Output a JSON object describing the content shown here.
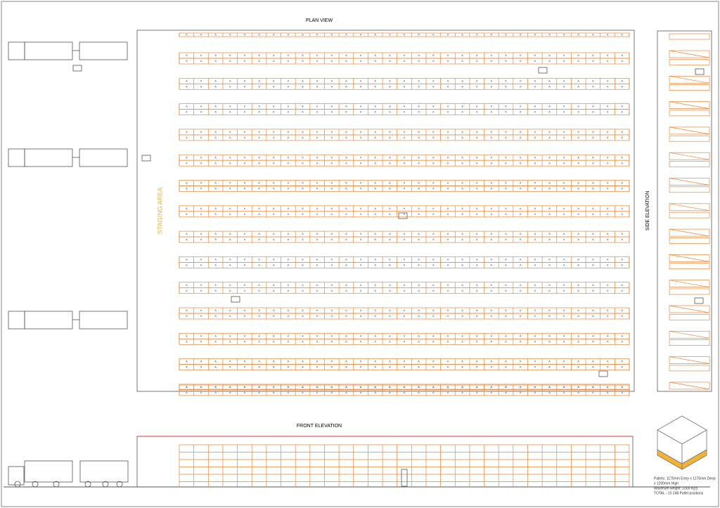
{
  "plan": {
    "title": "PLAN VIEW",
    "staging_label": "STAGING AREA",
    "rack_label": "A"
  },
  "side": {
    "title": "SIDE ELEVATION"
  },
  "front": {
    "title": "FRONT ELEVATION"
  },
  "notes": {
    "lines": [
      "Pallets: 1175mm Entry x 1175mm Deep",
      "x 1200mm High",
      "Maximum weight: 1000 Kg's",
      "TOTAL - 10 248 Pallet positions"
    ]
  }
}
